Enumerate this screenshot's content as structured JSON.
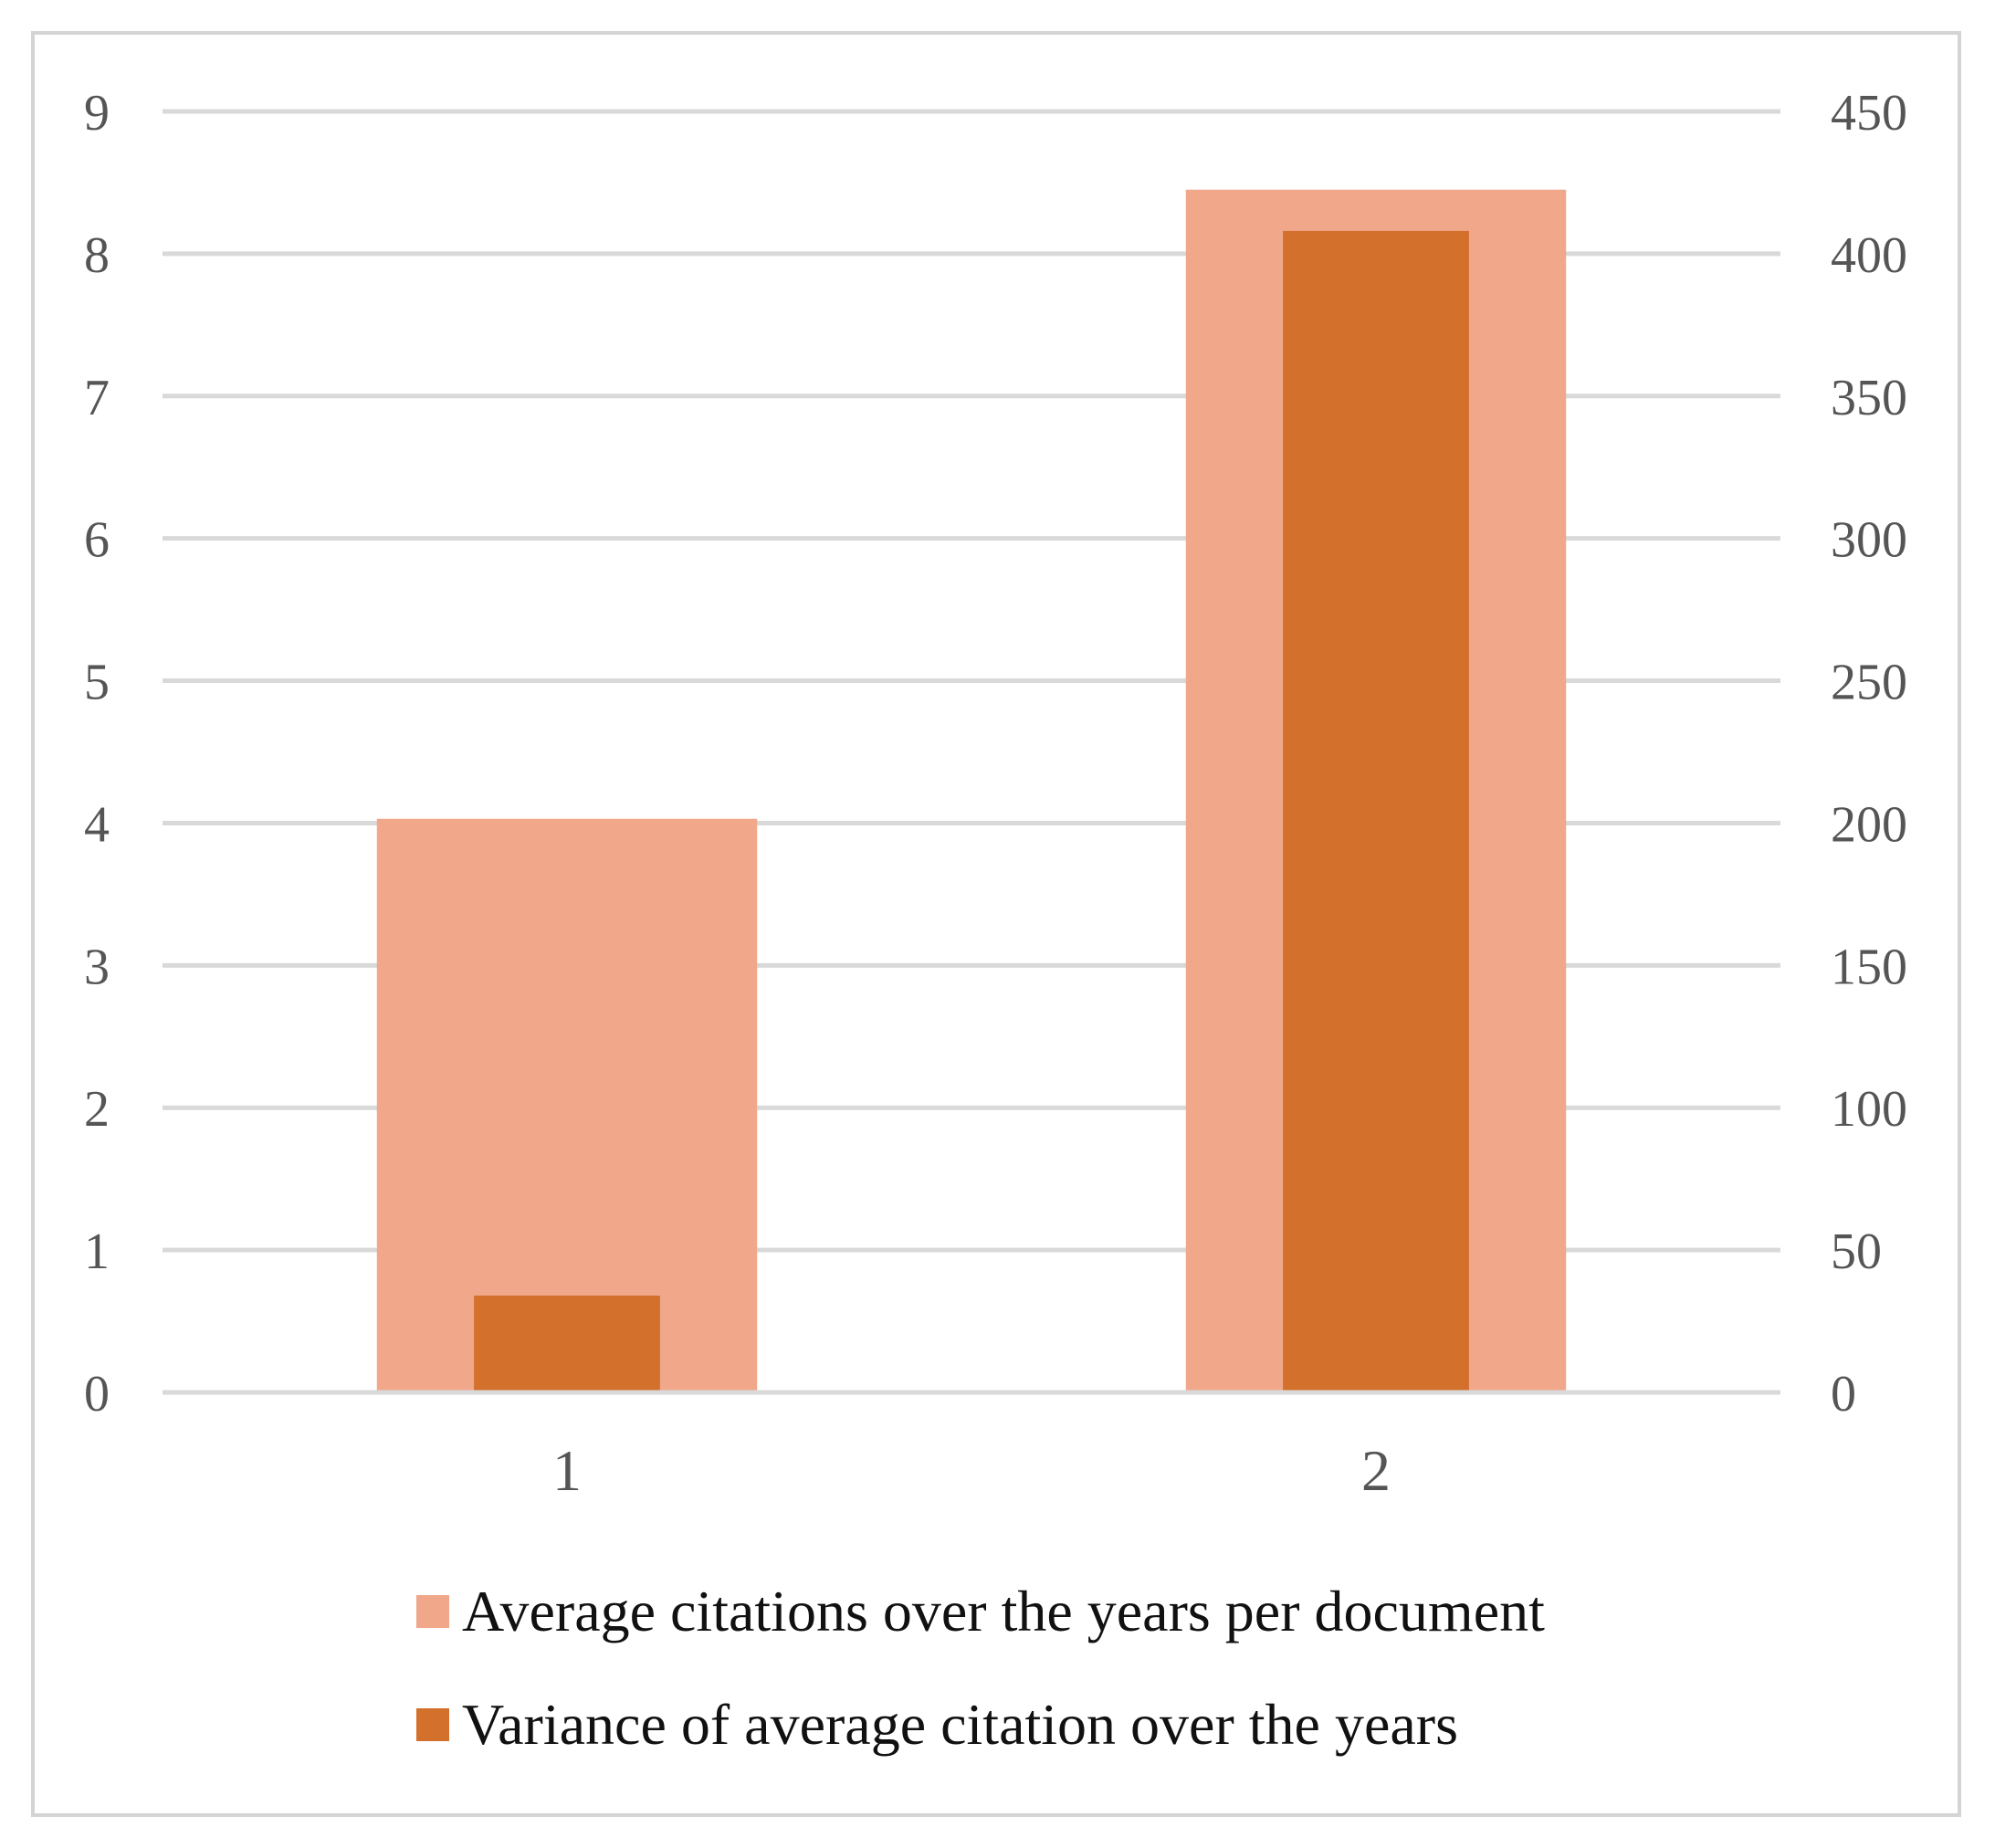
{
  "chart_data": {
    "type": "bar",
    "categories": [
      "1",
      "2"
    ],
    "series": [
      {
        "name": "Average citations over the years per document",
        "axis": "left",
        "color": "#F0A78A",
        "values": [
          4.03,
          8.45
        ]
      },
      {
        "name": "Variance of average citation over the years",
        "axis": "right",
        "color": "#D2702C",
        "values": [
          34,
          408
        ]
      }
    ],
    "y_left": {
      "min": 0,
      "max": 9,
      "ticks": [
        "0",
        "1",
        "2",
        "3",
        "4",
        "5",
        "6",
        "7",
        "8",
        "9"
      ]
    },
    "y_right": {
      "min": 0,
      "max": 450,
      "ticks": [
        "0",
        "50",
        "100",
        "150",
        "200",
        "250",
        "300",
        "350",
        "400",
        "450"
      ]
    },
    "grid": true,
    "legend_position": "bottom",
    "gridline_color": "#d9d9d9"
  }
}
